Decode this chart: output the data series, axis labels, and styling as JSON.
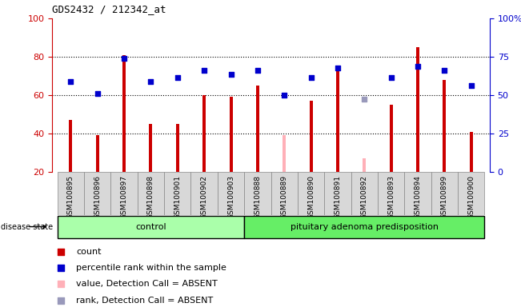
{
  "title": "GDS2432 / 212342_at",
  "samples": [
    "GSM100895",
    "GSM100896",
    "GSM100897",
    "GSM100898",
    "GSM100901",
    "GSM100902",
    "GSM100903",
    "GSM100888",
    "GSM100889",
    "GSM100890",
    "GSM100891",
    "GSM100892",
    "GSM100893",
    "GSM100894",
    "GSM100899",
    "GSM100900"
  ],
  "bar_values": [
    47,
    39,
    81,
    45,
    45,
    60,
    59,
    65,
    39,
    57,
    75,
    27,
    55,
    85,
    68,
    41
  ],
  "bar_absent": [
    false,
    false,
    false,
    false,
    false,
    false,
    false,
    false,
    true,
    false,
    false,
    true,
    false,
    false,
    false,
    false
  ],
  "dot_values": [
    67,
    61,
    79,
    67,
    69,
    73,
    71,
    73,
    60,
    69,
    74,
    58,
    69,
    75,
    73,
    65
  ],
  "dot_absent": [
    false,
    false,
    false,
    false,
    false,
    false,
    false,
    false,
    false,
    false,
    false,
    true,
    false,
    false,
    false,
    false
  ],
  "groups": [
    {
      "label": "control",
      "start": 0,
      "end": 7
    },
    {
      "label": "pituitary adenoma predisposition",
      "start": 7,
      "end": 16
    }
  ],
  "bar_color_normal": "#cc0000",
  "bar_color_absent": "#ffb0b8",
  "dot_color_normal": "#0000cc",
  "dot_color_absent": "#9999bb",
  "group_color_control": "#aaffaa",
  "group_color_pituitary": "#66ee66",
  "ylim_left": [
    20,
    100
  ],
  "ylim_right": [
    0,
    100
  ],
  "left_yticks": [
    20,
    40,
    60,
    80,
    100
  ],
  "right_yticks": [
    0,
    25,
    50,
    75,
    100
  ],
  "right_yticklabels": [
    "0",
    "25",
    "50",
    "75",
    "100%"
  ],
  "dotted_grid_values": [
    40,
    60,
    80
  ],
  "bar_width": 0.12,
  "dot_size": 20,
  "legend_items": [
    {
      "label": "count",
      "color": "#cc0000"
    },
    {
      "label": "percentile rank within the sample",
      "color": "#0000cc"
    },
    {
      "label": "value, Detection Call = ABSENT",
      "color": "#ffb0b8"
    },
    {
      "label": "rank, Detection Call = ABSENT",
      "color": "#9999bb"
    }
  ],
  "disease_state_label": "disease state",
  "bg_color": "#d8d8d8",
  "tick_label_bg": "#d8d8d8",
  "left_axis_color": "#cc0000",
  "right_axis_color": "#0000cc"
}
